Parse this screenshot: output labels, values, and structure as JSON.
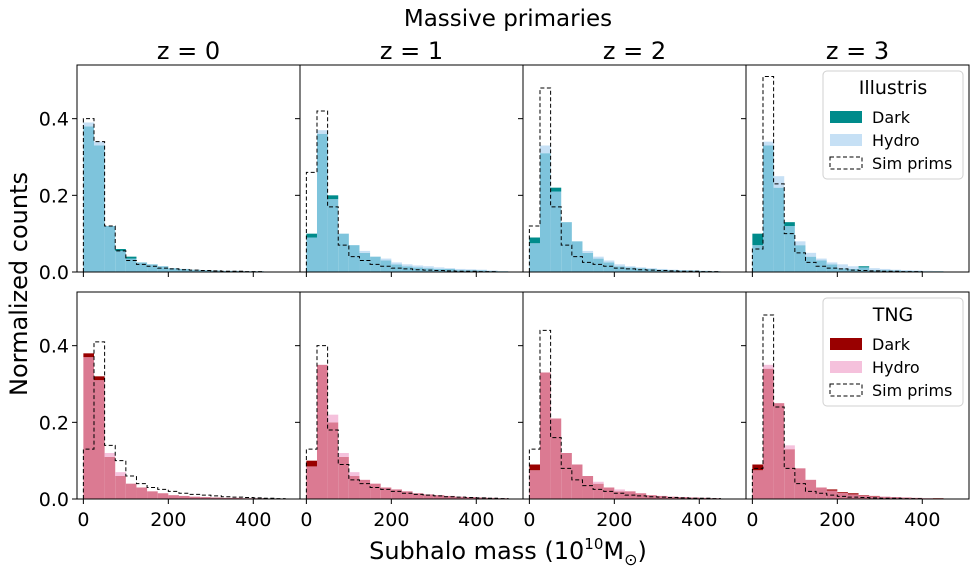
{
  "figure": {
    "suptitle": "Massive primaries",
    "xlabel": "Subhalo mass (10",
    "xlabel_sup": "10",
    "xlabel_tail": "M",
    "xlabel_sub": "⊙",
    "ylabel": "Normalized counts"
  },
  "chart_data": {
    "type": "bar",
    "bin_edges": [
      0,
      25,
      50,
      75,
      100,
      125,
      150,
      175,
      200,
      225,
      250,
      275,
      300,
      325,
      350,
      375,
      400,
      425,
      450,
      475,
      500
    ],
    "xlim": [
      -15,
      510
    ],
    "ylim": [
      0,
      0.54
    ],
    "xticks": [
      0,
      200,
      400
    ],
    "yticks": [
      0.0,
      0.2,
      0.4
    ],
    "xtick_labels": [
      "0",
      "200",
      "400"
    ],
    "ytick_labels": [
      "0.0",
      "0.2",
      "0.4"
    ],
    "grid": false,
    "column_titles": [
      "z = 0",
      "z = 1",
      "z = 2",
      "z = 3"
    ],
    "rows": [
      {
        "name": "Illustris",
        "colors": {
          "dark": "#008b8b",
          "hydro": "#c6e0f5",
          "overlap": "#7ec4dc"
        },
        "legend": {
          "title": "Illustris",
          "location": "top-right",
          "panel": 3,
          "entries": [
            "Dark",
            "Hydro",
            "Sim prims"
          ]
        },
        "panels": [
          {
            "dark": [
              0.38,
              0.33,
              0.12,
              0.06,
              0.04,
              0.025,
              0.02,
              0.015,
              0.01,
              0.008,
              0.006,
              0.005,
              0.004,
              0.003,
              0.003,
              0.002,
              0.002,
              0.001,
              0,
              0
            ],
            "hydro": [
              0.39,
              0.34,
              0.12,
              0.055,
              0.035,
              0.025,
              0.02,
              0.015,
              0.01,
              0.008,
              0.006,
              0.005,
              0.004,
              0.003,
              0.003,
              0.002,
              0.002,
              0.001,
              0,
              0
            ],
            "sim": [
              0.4,
              0.34,
              0.12,
              0.055,
              0.03,
              0.02,
              0.015,
              0.01,
              0.008,
              0.006,
              0.005,
              0.004,
              0.003,
              0.002,
              0.002,
              0.001,
              0.001,
              0,
              0,
              0
            ]
          },
          {
            "dark": [
              0.1,
              0.36,
              0.2,
              0.1,
              0.07,
              0.05,
              0.04,
              0.03,
              0.02,
              0.015,
              0.012,
              0.01,
              0.008,
              0.008,
              0.005,
              0.005,
              0.004,
              0.003,
              0.002,
              0
            ],
            "hydro": [
              0.09,
              0.37,
              0.19,
              0.1,
              0.07,
              0.055,
              0.04,
              0.035,
              0.025,
              0.02,
              0.017,
              0.015,
              0.012,
              0.01,
              0.008,
              0.007,
              0.006,
              0.004,
              0.002,
              0
            ],
            "sim": [
              0.26,
              0.42,
              0.17,
              0.07,
              0.04,
              0.03,
              0.02,
              0.015,
              0.01,
              0.008,
              0.006,
              0.005,
              0.004,
              0.003,
              0.002,
              0.002,
              0.001,
              0.001,
              0,
              0
            ]
          },
          {
            "dark": [
              0.09,
              0.31,
              0.22,
              0.13,
              0.08,
              0.05,
              0.035,
              0.025,
              0.015,
              0.012,
              0.01,
              0.008,
              0.006,
              0.005,
              0.004,
              0.004,
              0.003,
              0.002,
              0.001,
              0
            ],
            "hydro": [
              0.075,
              0.33,
              0.21,
              0.13,
              0.08,
              0.055,
              0.04,
              0.03,
              0.02,
              0.015,
              0.012,
              0.01,
              0.008,
              0.006,
              0.005,
              0.004,
              0.003,
              0.002,
              0.001,
              0
            ],
            "sim": [
              0.12,
              0.48,
              0.17,
              0.07,
              0.04,
              0.025,
              0.02,
              0.015,
              0.01,
              0.008,
              0.006,
              0.005,
              0.004,
              0.003,
              0.002,
              0.002,
              0.001,
              0.001,
              0,
              0
            ]
          },
          {
            "dark": [
              0.1,
              0.33,
              0.22,
              0.13,
              0.07,
              0.04,
              0.03,
              0.02,
              0.01,
              0.008,
              0.015,
              0.005,
              0.005,
              0.004,
              0.003,
              0.003,
              0.002,
              0.002,
              0.001,
              0
            ],
            "hydro": [
              0.07,
              0.34,
              0.25,
              0.12,
              0.08,
              0.05,
              0.035,
              0.025,
              0.02,
              0.015,
              0.012,
              0.01,
              0.008,
              0.006,
              0.005,
              0.004,
              0.003,
              0.002,
              0.001,
              0
            ],
            "sim": [
              0.06,
              0.51,
              0.23,
              0.1,
              0.05,
              0.025,
              0.015,
              0.01,
              0.008,
              0.005,
              0.004,
              0.003,
              0.002,
              0.002,
              0.001,
              0.001,
              0,
              0,
              0,
              0
            ]
          }
        ]
      },
      {
        "name": "TNG",
        "colors": {
          "dark": "#990000",
          "hydro": "#f5c1dc",
          "overlap": "#db7a92"
        },
        "legend": {
          "title": "TNG",
          "location": "top-right",
          "panel": 3,
          "entries": [
            "Dark",
            "Hydro",
            "Sim prims"
          ]
        },
        "panels": [
          {
            "dark": [
              0.38,
              0.32,
              0.11,
              0.06,
              0.04,
              0.03,
              0.02,
              0.015,
              0.01,
              0.008,
              0.006,
              0.005,
              0.004,
              0.003,
              0.003,
              0.002,
              0.002,
              0.001,
              0,
              0
            ],
            "hydro": [
              0.37,
              0.31,
              0.12,
              0.07,
              0.04,
              0.03,
              0.02,
              0.015,
              0.01,
              0.008,
              0.006,
              0.005,
              0.004,
              0.003,
              0.003,
              0.002,
              0.002,
              0.001,
              0,
              0
            ],
            "sim": [
              0.13,
              0.41,
              0.14,
              0.1,
              0.06,
              0.04,
              0.03,
              0.025,
              0.02,
              0.015,
              0.012,
              0.01,
              0.008,
              0.006,
              0.005,
              0.004,
              0.003,
              0.002,
              0.001,
              0
            ],
            "sim_outline": true
          },
          {
            "dark": [
              0.1,
              0.35,
              0.2,
              0.11,
              0.06,
              0.05,
              0.04,
              0.03,
              0.025,
              0.02,
              0.015,
              0.012,
              0.01,
              0.008,
              0.006,
              0.005,
              0.004,
              0.003,
              0.002,
              0
            ],
            "hydro": [
              0.085,
              0.35,
              0.22,
              0.12,
              0.07,
              0.05,
              0.04,
              0.03,
              0.025,
              0.02,
              0.015,
              0.012,
              0.01,
              0.008,
              0.006,
              0.005,
              0.004,
              0.003,
              0.002,
              0
            ],
            "sim": [
              0.13,
              0.4,
              0.18,
              0.09,
              0.05,
              0.04,
              0.03,
              0.025,
              0.02,
              0.015,
              0.012,
              0.01,
              0.008,
              0.006,
              0.005,
              0.004,
              0.003,
              0.002,
              0.001,
              0
            ]
          },
          {
            "dark": [
              0.09,
              0.33,
              0.21,
              0.12,
              0.09,
              0.06,
              0.04,
              0.03,
              0.02,
              0.02,
              0.015,
              0.01,
              0.008,
              0.006,
              0.005,
              0.004,
              0.003,
              0.002,
              0.001,
              0
            ],
            "hydro": [
              0.075,
              0.33,
              0.21,
              0.12,
              0.09,
              0.06,
              0.045,
              0.03,
              0.025,
              0.02,
              0.015,
              0.01,
              0.008,
              0.006,
              0.005,
              0.004,
              0.003,
              0.002,
              0.001,
              0
            ],
            "sim": [
              0.13,
              0.44,
              0.16,
              0.08,
              0.05,
              0.035,
              0.025,
              0.02,
              0.015,
              0.01,
              0.008,
              0.006,
              0.005,
              0.004,
              0.003,
              0.002,
              0.002,
              0.001,
              0,
              0
            ]
          },
          {
            "dark": [
              0.09,
              0.34,
              0.25,
              0.13,
              0.08,
              0.05,
              0.03,
              0.025,
              0.018,
              0.015,
              0.01,
              0.008,
              0.006,
              0.005,
              0.004,
              0.003,
              0.002,
              0.002,
              0.001,
              0
            ],
            "hydro": [
              0.075,
              0.35,
              0.25,
              0.14,
              0.08,
              0.05,
              0.03,
              0.022,
              0.016,
              0.012,
              0.009,
              0.007,
              0.006,
              0.005,
              0.004,
              0.003,
              0.002,
              0.001,
              0.001,
              0
            ],
            "sim": [
              0.08,
              0.48,
              0.24,
              0.08,
              0.04,
              0.02,
              0.015,
              0.01,
              0.007,
              0.005,
              0.004,
              0.003,
              0.002,
              0.002,
              0.001,
              0.001,
              0,
              0,
              0,
              0
            ]
          }
        ]
      }
    ]
  }
}
